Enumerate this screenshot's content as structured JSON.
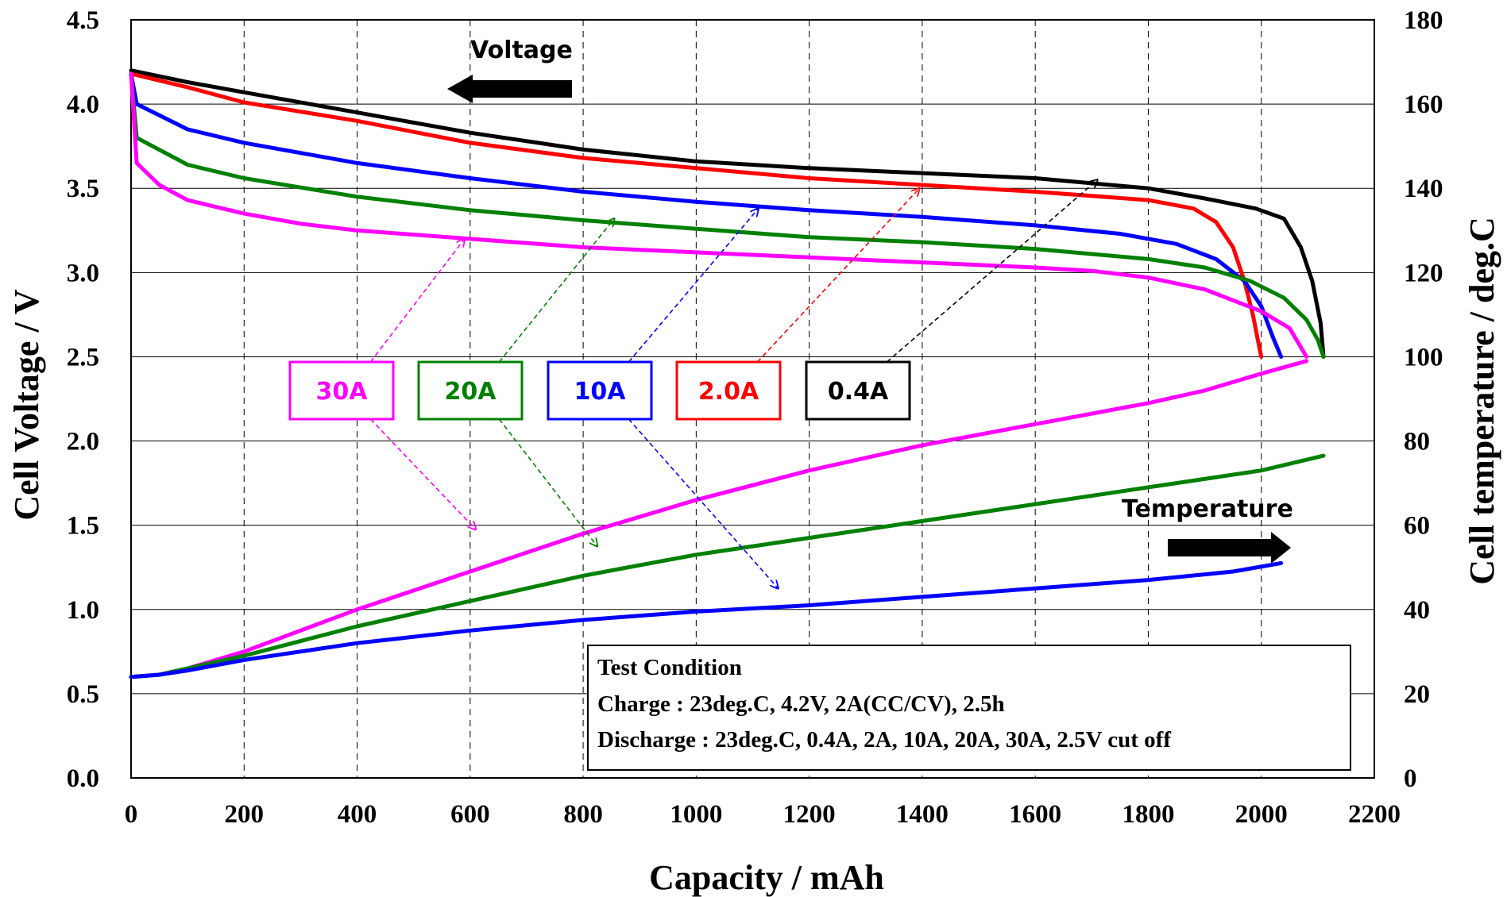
{
  "chart_data": {
    "type": "line",
    "xlabel": "Capacity / mAh",
    "ylabel": "Cell Voltage / V",
    "y2label": "Cell temperature / deg.C",
    "xlim": [
      0,
      2200
    ],
    "ylim": [
      0,
      4.5
    ],
    "y2lim": [
      0,
      180
    ],
    "x_ticks": [
      "0",
      "200",
      "400",
      "600",
      "800",
      "1000",
      "1200",
      "1400",
      "1600",
      "1800",
      "2000",
      "2200"
    ],
    "y_ticks": [
      "0.0",
      "0.5",
      "1.0",
      "1.5",
      "2.0",
      "2.5",
      "3.0",
      "3.5",
      "4.0",
      "4.5"
    ],
    "y2_ticks": [
      "0",
      "20",
      "40",
      "60",
      "80",
      "100",
      "120",
      "140",
      "160",
      "180"
    ],
    "grid": "vertical dashed, horizontal solid",
    "annotations": {
      "voltage_label": "Voltage",
      "voltage_arrow": "left",
      "temperature_label": "Temperature",
      "temperature_arrow": "right"
    },
    "test_condition": {
      "title": "Test Condition",
      "charge": "Charge : 23deg.C, 4.2V, 2A(CC/CV), 2.5h",
      "discharge": "Discharge : 23deg.C, 0.4A, 2A, 10A, 20A, 30A, 2.5V cut off"
    },
    "series": [
      {
        "name": "0.4A",
        "color": "#000000",
        "axis": "voltage",
        "x": [
          0,
          100,
          200,
          400,
          600,
          800,
          1000,
          1200,
          1400,
          1600,
          1800,
          1900,
          1990,
          2040,
          2070,
          2090,
          2105,
          2110
        ],
        "y": [
          4.2,
          4.13,
          4.07,
          3.95,
          3.83,
          3.73,
          3.66,
          3.62,
          3.59,
          3.56,
          3.5,
          3.44,
          3.38,
          3.32,
          3.15,
          2.95,
          2.7,
          2.5
        ]
      },
      {
        "name": "2.0A",
        "color": "#ff0000",
        "axis": "voltage",
        "x": [
          0,
          100,
          200,
          400,
          600,
          800,
          1000,
          1200,
          1400,
          1600,
          1800,
          1880,
          1920,
          1950,
          1970,
          1985,
          1995,
          2000
        ],
        "y": [
          4.18,
          4.1,
          4.01,
          3.9,
          3.77,
          3.68,
          3.62,
          3.56,
          3.52,
          3.48,
          3.43,
          3.38,
          3.3,
          3.15,
          2.95,
          2.75,
          2.58,
          2.5
        ]
      },
      {
        "name": "10A",
        "color": "#0000ff",
        "axis": "voltage",
        "x": [
          0,
          10,
          100,
          200,
          400,
          600,
          800,
          1000,
          1200,
          1400,
          1600,
          1750,
          1850,
          1920,
          1970,
          2000,
          2020,
          2035
        ],
        "y": [
          4.18,
          4.0,
          3.85,
          3.77,
          3.65,
          3.56,
          3.48,
          3.42,
          3.37,
          3.33,
          3.28,
          3.23,
          3.17,
          3.08,
          2.95,
          2.8,
          2.62,
          2.5
        ]
      },
      {
        "name": "20A",
        "color": "#008000",
        "axis": "voltage",
        "x": [
          0,
          10,
          100,
          200,
          400,
          600,
          800,
          1000,
          1200,
          1400,
          1600,
          1800,
          1900,
          1980,
          2040,
          2080,
          2100,
          2110
        ],
        "y": [
          4.18,
          3.8,
          3.64,
          3.56,
          3.45,
          3.37,
          3.31,
          3.26,
          3.21,
          3.18,
          3.14,
          3.08,
          3.03,
          2.95,
          2.85,
          2.72,
          2.6,
          2.5
        ]
      },
      {
        "name": "30A",
        "color": "#ff00ff",
        "axis": "voltage",
        "x": [
          0,
          10,
          50,
          100,
          200,
          300,
          400,
          600,
          800,
          1000,
          1200,
          1400,
          1600,
          1700,
          1800,
          1900,
          2000,
          2050,
          2080
        ],
        "y": [
          4.18,
          3.65,
          3.52,
          3.43,
          3.35,
          3.29,
          3.25,
          3.2,
          3.15,
          3.12,
          3.09,
          3.06,
          3.03,
          3.01,
          2.97,
          2.9,
          2.77,
          2.67,
          2.5
        ]
      },
      {
        "name": "30A",
        "color": "#ff00ff",
        "axis": "temperature",
        "x": [
          0,
          50,
          100,
          200,
          300,
          400,
          600,
          800,
          1000,
          1200,
          1400,
          1600,
          1800,
          1900,
          2000,
          2080
        ],
        "y": [
          24,
          24.5,
          26,
          30,
          35,
          40,
          49,
          58,
          66,
          73,
          79,
          84,
          89,
          92,
          96,
          99
        ]
      },
      {
        "name": "20A",
        "color": "#008000",
        "axis": "temperature",
        "x": [
          0,
          50,
          100,
          200,
          400,
          600,
          800,
          1000,
          1200,
          1400,
          1600,
          1800,
          2000,
          2110
        ],
        "y": [
          24,
          24.5,
          26,
          29,
          36,
          42,
          48,
          53,
          57,
          61,
          65,
          69,
          73,
          76.5
        ]
      },
      {
        "name": "10A",
        "color": "#0000ff",
        "axis": "temperature",
        "x": [
          0,
          50,
          100,
          200,
          400,
          600,
          800,
          1000,
          1200,
          1400,
          1600,
          1800,
          1950,
          2035
        ],
        "y": [
          24,
          24.5,
          25.5,
          28,
          32,
          35,
          37.5,
          39.5,
          41,
          43,
          45,
          47,
          49,
          51
        ]
      }
    ],
    "legend": [
      {
        "label": "30A",
        "color": "#ff00ff"
      },
      {
        "label": "20A",
        "color": "#008000"
      },
      {
        "label": "10A",
        "color": "#0000ff"
      },
      {
        "label": "2.0A",
        "color": "#ff0000"
      },
      {
        "label": "0.4A",
        "color": "#000000"
      }
    ],
    "legend_arrows": [
      {
        "label": "30A",
        "voltage_x": 590,
        "voltage_y": 3.2,
        "temp_x": 610,
        "temp_y": 59
      },
      {
        "label": "20A",
        "voltage_x": 855,
        "voltage_y": 3.32,
        "temp_x": 825,
        "temp_y": 55
      },
      {
        "label": "10A",
        "voltage_x": 1110,
        "voltage_y": 3.38,
        "temp_x": 1145,
        "temp_y": 45
      },
      {
        "label": "2.0A",
        "voltage_x": 1395,
        "voltage_y": 3.5
      },
      {
        "label": "0.4A",
        "voltage_x": 1710,
        "voltage_y": 3.55
      }
    ]
  }
}
